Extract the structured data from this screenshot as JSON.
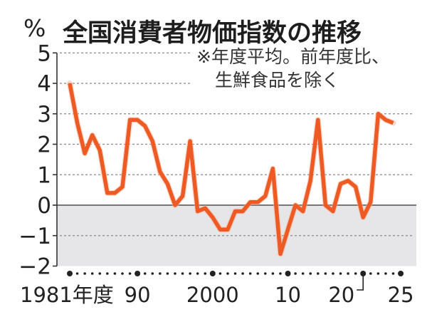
{
  "header": {
    "unit": "%",
    "title": "全国消費者物価指数の推移"
  },
  "note": {
    "line1": "※年度平均。前年度比、",
    "line2": "生鮮食品を除く"
  },
  "colors": {
    "line": "#ee5a24",
    "negative_band": "#e6e6e8",
    "grid": "#888888",
    "zero_line": "#777777"
  },
  "chart_data": {
    "type": "line",
    "title": "全国消費者物価指数の推移",
    "subtitle": "※年度平均。前年度比、生鮮食品を除く",
    "xlabel": "年度",
    "ylabel": "%",
    "ylim": [
      -2,
      5
    ],
    "yticks": [
      "5",
      "4",
      "3",
      "2",
      "1",
      "0",
      "-1",
      "-2"
    ],
    "xtick_labels": [
      {
        "year": 1981,
        "label": "1981年度"
      },
      {
        "year": 1990,
        "label": "90"
      },
      {
        "year": 2000,
        "label": "2000"
      },
      {
        "year": 2010,
        "label": "10"
      },
      {
        "year": 2020,
        "label": "20"
      },
      {
        "year": 2025,
        "label": "25"
      }
    ],
    "grid": true,
    "shaded_below_zero": true,
    "series": [
      {
        "name": "全国消費者物価指数(生鮮食品を除く)前年度比",
        "x": [
          1981,
          1982,
          1983,
          1984,
          1985,
          1986,
          1987,
          1988,
          1989,
          1990,
          1991,
          1992,
          1993,
          1994,
          1995,
          1996,
          1997,
          1998,
          1999,
          2000,
          2001,
          2002,
          2003,
          2004,
          2005,
          2006,
          2007,
          2008,
          2009,
          2010,
          2011,
          2012,
          2013,
          2014,
          2015,
          2016,
          2017,
          2018,
          2019,
          2020,
          2021,
          2022,
          2023,
          2024
        ],
        "values": [
          4.0,
          2.7,
          1.7,
          2.3,
          1.8,
          0.4,
          0.4,
          0.6,
          2.8,
          2.8,
          2.6,
          2.1,
          1.1,
          0.7,
          0.0,
          0.3,
          2.1,
          -0.2,
          -0.1,
          -0.4,
          -0.8,
          -0.8,
          -0.2,
          -0.2,
          0.1,
          0.1,
          0.3,
          1.2,
          -1.6,
          -0.8,
          0.0,
          -0.2,
          0.8,
          2.8,
          0.0,
          -0.2,
          0.7,
          0.8,
          0.6,
          -0.4,
          0.1,
          3.0,
          2.8,
          2.7
        ]
      }
    ]
  }
}
